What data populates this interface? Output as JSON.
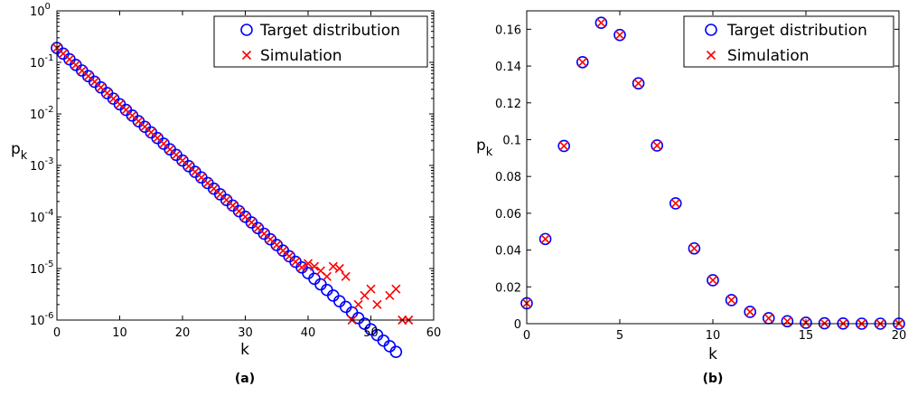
{
  "colors": {
    "target": "#0000ff",
    "simulation": "#ff0000",
    "axis": "#000000"
  },
  "chart_data": [
    {
      "type": "scatter",
      "caption": "(a)",
      "xlabel": "k",
      "ylabel_main": "p",
      "ylabel_sub": "k",
      "xlim": [
        0,
        60
      ],
      "ylim": [
        1e-06,
        1
      ],
      "yscale": "log",
      "xticks": [
        0,
        10,
        20,
        30,
        40,
        50,
        60
      ],
      "yticks": [
        {
          "value": 1,
          "base": "10",
          "exp": "0"
        },
        {
          "value": 0.1,
          "base": "10",
          "exp": "-1"
        },
        {
          "value": 0.01,
          "base": "10",
          "exp": "-2"
        },
        {
          "value": 0.001,
          "base": "10",
          "exp": "-3"
        },
        {
          "value": 0.0001,
          "base": "10",
          "exp": "-4"
        },
        {
          "value": 1e-05,
          "base": "10",
          "exp": "-5"
        },
        {
          "value": 1e-06,
          "base": "10",
          "exp": "-6"
        }
      ],
      "legend": {
        "location": "top-right",
        "entries": [
          "Target distribution",
          "Simulation"
        ]
      },
      "series": [
        {
          "name": "Target distribution",
          "marker": "circle",
          "x0": 0,
          "x1": 54,
          "a": 0.19,
          "r": 0.7777
        },
        {
          "name": "Simulation",
          "marker": "x",
          "x0": 0,
          "x1": 39,
          "a": 0.19,
          "r": 0.7777,
          "tail": [
            [
              40,
              1.25e-05
            ],
            [
              41,
              1.1e-05
            ],
            [
              42,
              9e-06
            ],
            [
              43,
              7e-06
            ],
            [
              44,
              1.1e-05
            ],
            [
              45,
              1e-05
            ],
            [
              46,
              7e-06
            ],
            [
              47,
              1e-06
            ],
            [
              48,
              2e-06
            ],
            [
              49,
              3e-06
            ],
            [
              50,
              4e-06
            ],
            [
              51,
              2e-06
            ],
            [
              53,
              3e-06
            ],
            [
              54,
              4e-06
            ],
            [
              55,
              1e-06
            ],
            [
              56,
              1e-06
            ]
          ]
        }
      ]
    },
    {
      "type": "scatter",
      "caption": "(b)",
      "xlabel": "k",
      "ylabel_main": "p",
      "ylabel_sub": "k",
      "xlim": [
        0,
        20
      ],
      "ylim": [
        0,
        0.17
      ],
      "xticks": [
        0,
        5,
        10,
        15,
        20
      ],
      "yticks": [
        0,
        0.02,
        0.04,
        0.06,
        0.08,
        0.1,
        0.12,
        0.14,
        0.16
      ],
      "ytick_labels": [
        "0",
        "0.02",
        "0.04",
        "0.06",
        "0.08",
        "0.1",
        "0.12",
        "0.14",
        "0.16"
      ],
      "legend": {
        "location": "top-right",
        "entries": [
          "Target distribution",
          "Simulation"
        ]
      },
      "x": [
        0,
        1,
        2,
        3,
        4,
        5,
        6,
        7,
        8,
        9,
        10,
        11,
        12,
        13,
        14,
        15,
        16,
        17,
        18,
        19,
        20
      ],
      "series": [
        {
          "name": "Target distribution",
          "marker": "circle",
          "values": [
            0.0111,
            0.046,
            0.0966,
            0.1421,
            0.1635,
            0.1569,
            0.1306,
            0.0968,
            0.0654,
            0.0409,
            0.0236,
            0.0128,
            0.0064,
            0.003,
            0.0013,
            0.0005,
            0.0002,
            0.0001,
            0.0,
            0.0,
            0.0
          ]
        },
        {
          "name": "Simulation",
          "marker": "x",
          "values": [
            0.0111,
            0.046,
            0.0966,
            0.1421,
            0.1635,
            0.1569,
            0.1306,
            0.0968,
            0.0654,
            0.0409,
            0.0236,
            0.0128,
            0.0064,
            0.003,
            0.0013,
            0.0005,
            0.0002,
            0.0001,
            0.0,
            0.0,
            0.0
          ]
        }
      ]
    }
  ]
}
